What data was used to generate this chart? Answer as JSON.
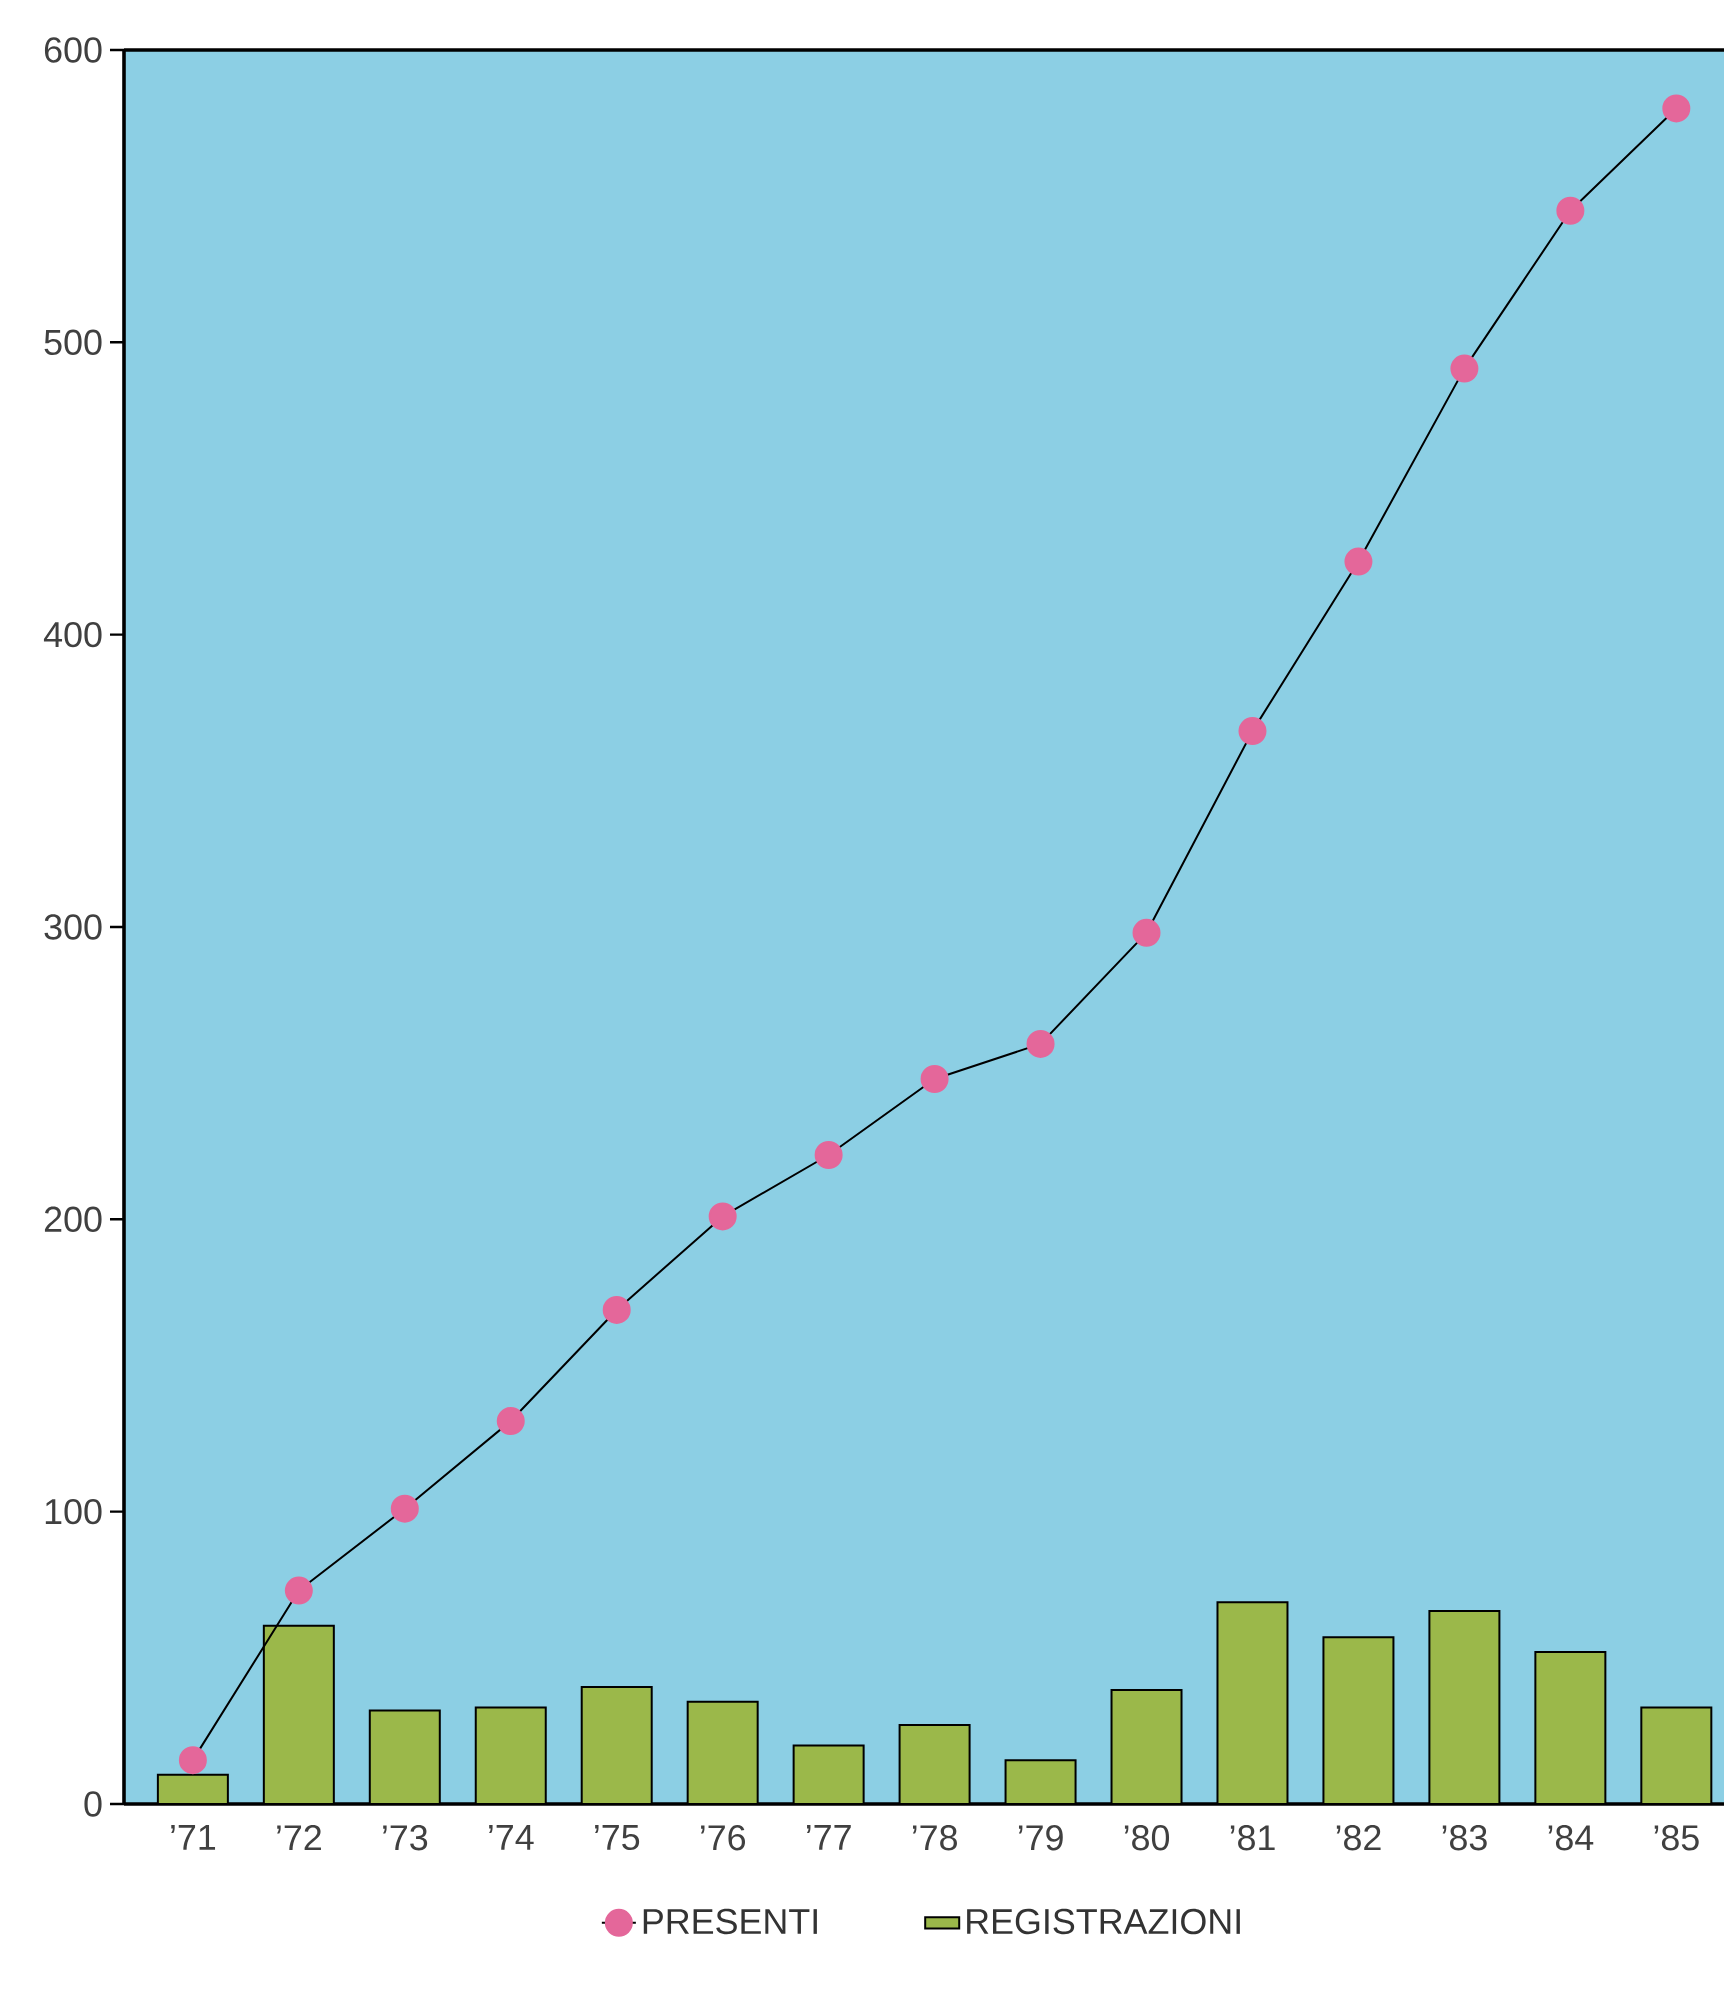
{
  "chart_data": {
    "type": "bar",
    "categories": [
      "’71",
      "’72",
      "’73",
      "’74",
      "’75",
      "’76",
      "’77",
      "’78",
      "’79",
      "’80",
      "’81",
      "’82",
      "’83",
      "’84",
      "’85"
    ],
    "series": [
      {
        "name": "PRESENTI",
        "type": "line",
        "color": "#e4679a",
        "values": [
          15,
          73,
          101,
          131,
          169,
          201,
          222,
          248,
          260,
          298,
          367,
          425,
          491,
          545,
          580
        ]
      },
      {
        "name": "REGISTRAZIONI",
        "color": "#9bb84a",
        "values": [
          10,
          61,
          32,
          33,
          40,
          35,
          20,
          27,
          15,
          39,
          69,
          57,
          66,
          52,
          33
        ]
      }
    ],
    "ylim": [
      0,
      600
    ],
    "yticks": [
      0,
      100,
      200,
      300,
      400,
      500,
      600
    ],
    "legend": "bottom",
    "marker": "circle"
  }
}
